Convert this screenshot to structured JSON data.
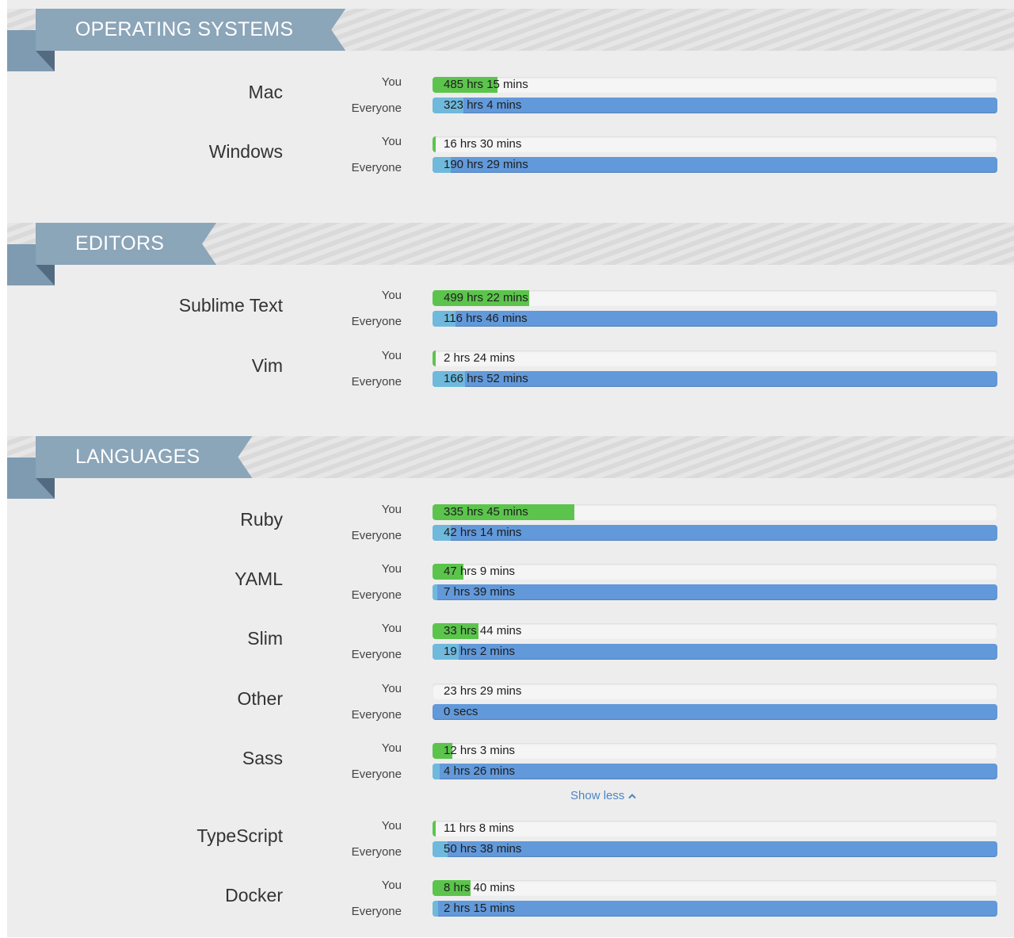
{
  "labels": {
    "you": "You",
    "everyone": "Everyone"
  },
  "colors": {
    "you_fill": "#5cc44c",
    "everyone_fill": "#6fb9dd",
    "everyone_track": "#6299da",
    "ribbon": "#8ba5b9"
  },
  "sections": [
    {
      "title": "OPERATING SYSTEMS",
      "items": [
        {
          "name": "Mac",
          "you": "485 hrs 15 mins",
          "everyone": "323 hrs 4 mins",
          "you_frac": 0.115,
          "everyone_frac": 0.054
        },
        {
          "name": "Windows",
          "you": "16 hrs 30 mins",
          "everyone": "190 hrs 29 mins",
          "you_frac": 0.005,
          "everyone_frac": 0.032
        }
      ]
    },
    {
      "title": "EDITORS",
      "items": [
        {
          "name": "Sublime Text",
          "you": "499 hrs 22 mins",
          "everyone": "116 hrs 46 mins",
          "you_frac": 0.171,
          "everyone_frac": 0.04
        },
        {
          "name": "Vim",
          "you": "2 hrs 24 mins",
          "everyone": "166 hrs 52 mins",
          "you_frac": 0.001,
          "everyone_frac": 0.057
        }
      ]
    },
    {
      "title": "LANGUAGES",
      "items": [
        {
          "name": "Ruby",
          "you": "335 hrs 45 mins",
          "everyone": "42 hrs 14 mins",
          "you_frac": 0.251,
          "everyone_frac": 0.032
        },
        {
          "name": "YAML",
          "you": "47 hrs 9 mins",
          "everyone": "7 hrs 39 mins",
          "you_frac": 0.055,
          "everyone_frac": 0.008
        },
        {
          "name": "Slim",
          "you": "33 hrs 44 mins",
          "everyone": "19 hrs 2 mins",
          "you_frac": 0.082,
          "everyone_frac": 0.046
        },
        {
          "name": "Other",
          "you": "23 hrs 29 mins",
          "everyone": "0 secs",
          "you_frac": 0.0,
          "everyone_frac": 0.0
        },
        {
          "name": "Sass",
          "you": "12 hrs 3 mins",
          "everyone": "4 hrs 26 mins",
          "you_frac": 0.035,
          "everyone_frac": 0.013
        },
        {
          "name": "TypeScript",
          "you": "11 hrs 8 mins",
          "everyone": "50 hrs 38 mins",
          "you_frac": 0.004,
          "everyone_frac": 0.027
        },
        {
          "name": "Docker",
          "you": "8 hrs 40 mins",
          "everyone": "2 hrs 15 mins",
          "you_frac": 0.068,
          "everyone_frac": 0.01
        }
      ]
    }
  ],
  "show_less": {
    "label": "Show less"
  }
}
